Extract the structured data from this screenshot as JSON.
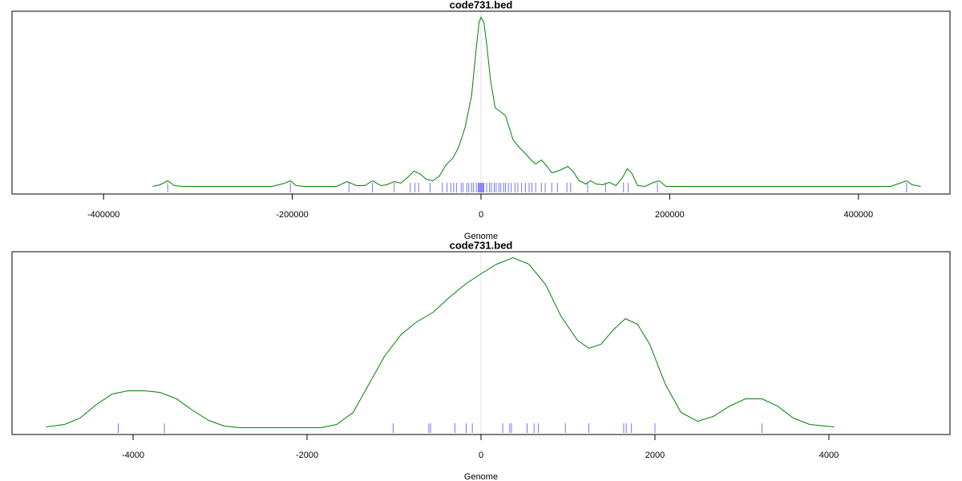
{
  "chart_data": [
    {
      "type": "line",
      "title": "code731.bed",
      "xlabel": "Genome",
      "xlim": [
        -497000,
        497000
      ],
      "xticks": [
        -400000,
        -200000,
        0,
        200000,
        400000
      ],
      "ylim": [
        -8.5,
        219.5
      ],
      "vline": 0,
      "rug_color": "#0000ff",
      "x": [
        -348000,
        -340000,
        -332000,
        -325000,
        -315000,
        -221000,
        -208000,
        -202000,
        -196000,
        -187000,
        -153000,
        -142000,
        -132000,
        -123000,
        -115000,
        -106000,
        -100000,
        -92000,
        -85000,
        -78000,
        -71000,
        -65000,
        -58000,
        -51000,
        -44000,
        -37000,
        -30000,
        -24000,
        -17000,
        -10000,
        -5000,
        -2000,
        0,
        3000,
        6000,
        10000,
        15000,
        21000,
        26000,
        30000,
        34000,
        41000,
        47000,
        53000,
        58000,
        64000,
        70000,
        75000,
        81000,
        87000,
        92000,
        98000,
        104000,
        111000,
        116000,
        122000,
        129000,
        136000,
        143000,
        150000,
        155000,
        160000,
        166000,
        174000,
        183000,
        189000,
        196000,
        255000,
        434000,
        444000,
        451000,
        457000,
        466000
      ],
      "series": [
        {
          "color": "#008000",
          "values": [
            1,
            3,
            8,
            2,
            1,
            1,
            5,
            8,
            2,
            1,
            1,
            7,
            2,
            2,
            8,
            2,
            3,
            7,
            5,
            12,
            20,
            17,
            10,
            8,
            14,
            28,
            36,
            49,
            74,
            114,
            174,
            206,
            212,
            206,
            179,
            134,
            99,
            94,
            89,
            74,
            59,
            49,
            42,
            34,
            29,
            34,
            26,
            18,
            20,
            23,
            26,
            19,
            8,
            4,
            8,
            4,
            3,
            6,
            2,
            12,
            23,
            17,
            2,
            1,
            6,
            8,
            1,
            1,
            1,
            5,
            8,
            3,
            1
          ]
        }
      ],
      "rug": [
        -332000,
        -202000,
        -140000,
        -115000,
        -92000,
        -75000,
        -70000,
        -66000,
        -54000,
        -41000,
        -36000,
        -32000,
        -29000,
        -26000,
        -21000,
        -19000,
        -15000,
        -13000,
        -10000,
        -8000,
        -5000,
        -3000,
        -2000,
        -1000,
        0,
        1000,
        2000,
        3000,
        6000,
        9000,
        11000,
        14000,
        16000,
        19000,
        21000,
        24000,
        26000,
        29000,
        32000,
        36000,
        39000,
        43000,
        47000,
        51000,
        54000,
        58000,
        64000,
        68000,
        75000,
        81000,
        91000,
        95000,
        113000,
        132000,
        151000,
        156000,
        187000,
        451000
      ]
    },
    {
      "type": "line",
      "title": "code731.bed",
      "xlabel": "Genome",
      "xlim": [
        -5392,
        5392
      ],
      "xticks": [
        -4000,
        -2000,
        0,
        2000,
        4000
      ],
      "ylim": [
        -8.5,
        219.5
      ],
      "vline": 0,
      "rug_color": "#0000ff",
      "x": [
        -5000,
        -4790,
        -4610,
        -4420,
        -4240,
        -4060,
        -3870,
        -3690,
        -3500,
        -3320,
        -3130,
        -2950,
        -2770,
        -1840,
        -1660,
        -1470,
        -1290,
        -1110,
        -920,
        -740,
        -550,
        -370,
        -180,
        0,
        180,
        370,
        550,
        740,
        920,
        1110,
        1240,
        1380,
        1520,
        1660,
        1800,
        1940,
        2120,
        2300,
        2490,
        2670,
        2860,
        3040,
        3230,
        3410,
        3590,
        3780,
        4060
      ],
      "series": [
        {
          "color": "#008000",
          "values": [
            1,
            4,
            12,
            29,
            42,
            46,
            46,
            44,
            36,
            22,
            9,
            2,
            0,
            0,
            4,
            19,
            54,
            89,
            116,
            132,
            144,
            162,
            179,
            192,
            204,
            212,
            204,
            179,
            139,
            109,
            99,
            104,
            122,
            136,
            129,
            104,
            54,
            19,
            8,
            14,
            27,
            36,
            36,
            27,
            12,
            4,
            1
          ]
        }
      ],
      "rug": [
        -4170,
        -3640,
        -1010,
        -600,
        -580,
        -300,
        -170,
        -100,
        250,
        330,
        350,
        530,
        610,
        660,
        970,
        1240,
        1640,
        1670,
        1730,
        2000,
        3230
      ]
    }
  ]
}
